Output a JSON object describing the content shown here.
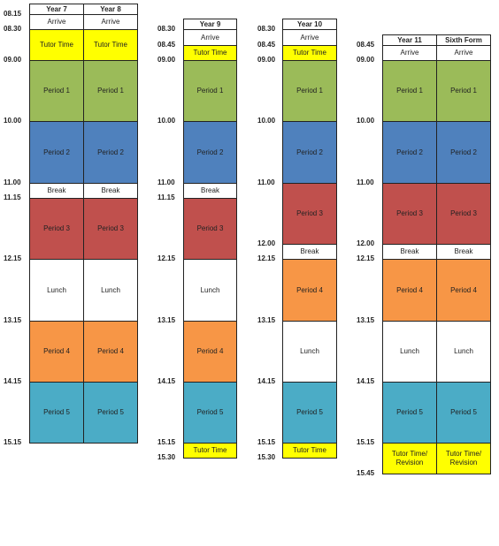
{
  "groups": [
    {
      "name": "years-7-8",
      "times": [
        "08.15",
        "08.30",
        "09.00",
        "10.00",
        "11.00",
        "11.15",
        "12.15",
        "13.15",
        "14.15",
        "15.15"
      ],
      "columns": [
        {
          "header": "Year 7",
          "slots": [
            "Arrive",
            "Tutor Time",
            "Period 1",
            "Period 2",
            "Break",
            "Period 3",
            "Lunch",
            "Period 4",
            "Period 5"
          ]
        },
        {
          "header": "Year 8",
          "slots": [
            "Arrive",
            "Tutor Time",
            "Period 1",
            "Period 2",
            "Break",
            "Period 3",
            "Lunch",
            "Period 4",
            "Period 5"
          ]
        }
      ]
    },
    {
      "name": "year-9",
      "times": [
        "08.30",
        "08.45",
        "09.00",
        "10.00",
        "11.00",
        "11.15",
        "12.15",
        "13.15",
        "14.15",
        "15.15",
        "15.30"
      ],
      "columns": [
        {
          "header": "Year 9",
          "slots": [
            "Arrive",
            "Tutor Time",
            "Period 1",
            "Period 2",
            "Break",
            "Period 3",
            "Lunch",
            "Period 4",
            "Period 5",
            "Tutor Time"
          ]
        }
      ]
    },
    {
      "name": "year-10",
      "times": [
        "08.30",
        "08.45",
        "09.00",
        "10.00",
        "11.00",
        "12.00",
        "12.15",
        "13.15",
        "14.15",
        "15.15",
        "15.30"
      ],
      "columns": [
        {
          "header": "Year 10",
          "slots": [
            "Arrive",
            "Tutor Time",
            "Period 1",
            "Period 2",
            "Period 3",
            "Break",
            "Period 4",
            "Lunch",
            "Period 5",
            "Tutor Time"
          ]
        }
      ]
    },
    {
      "name": "year-11-sixth-form",
      "times": [
        "08.45",
        "09.00",
        "10.00",
        "11.00",
        "12.00",
        "12.15",
        "13.15",
        "14.15",
        "15.15",
        "15.45"
      ],
      "columns": [
        {
          "header": "Year 11",
          "slots": [
            "Arrive",
            "Period 1",
            "Period 2",
            "Period 3",
            "Break",
            "Period 4",
            "Lunch",
            "Period 5",
            "Tutor Time/\nRevision"
          ]
        },
        {
          "header": "Sixth Form",
          "slots": [
            "Arrive",
            "Period 1",
            "Period 2",
            "Period 3",
            "Break",
            "Period 4",
            "Lunch",
            "Period 5",
            "Tutor Time/\nRevision"
          ]
        }
      ]
    }
  ],
  "colors": {
    "Arrive": "#ffffff",
    "Tutor Time": "#ffff00",
    "Period 1": "#9bbb59",
    "Period 2": "#4f81bd",
    "Break": "#ffffff",
    "Period 3": "#c0504d",
    "Lunch": "#ffffff",
    "Period 4": "#f79646",
    "Period 5": "#4bacc6",
    "Tutor Time/\nRevision": "#ffff00"
  }
}
